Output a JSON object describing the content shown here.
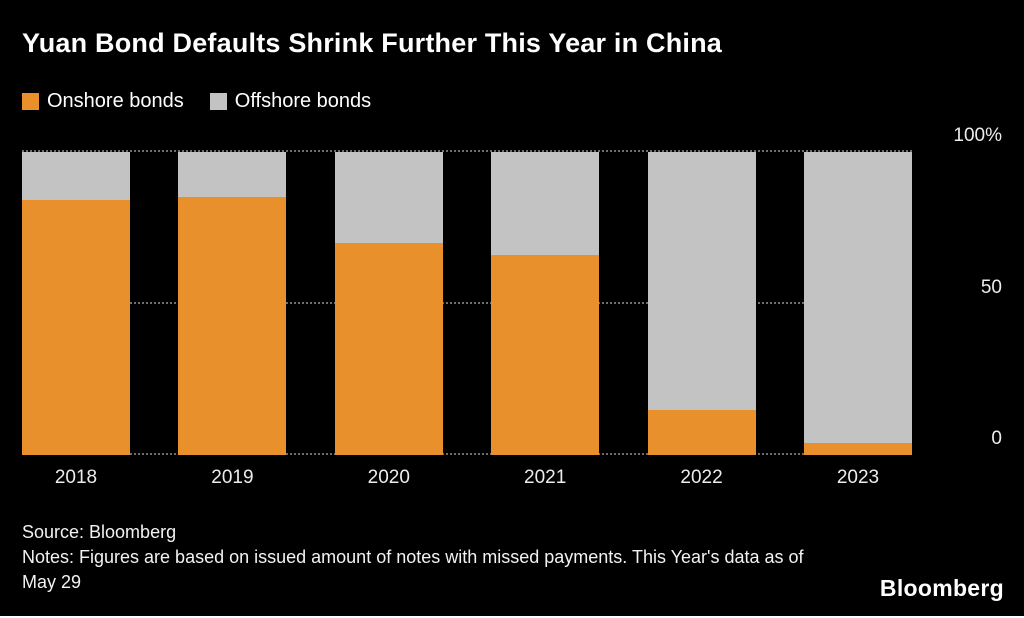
{
  "title": "Yuan Bond Defaults Shrink Further This Year in China",
  "legend": [
    {
      "label": "Onshore bonds",
      "color": "#E8912C"
    },
    {
      "label": "Offshore bonds",
      "color": "#C3C3C3"
    }
  ],
  "colors": {
    "background": "#000000",
    "onshore": "#E8912C",
    "offshore": "#C3C3C3",
    "gridline": "#6E6E6E",
    "text": "#FFFFFF"
  },
  "chart_data": {
    "type": "bar",
    "stacked": true,
    "normalized": "percent",
    "title": "Yuan Bond Defaults Shrink Further This Year in China",
    "categories": [
      "2018",
      "2019",
      "2020",
      "2021",
      "2022",
      "2023"
    ],
    "series": [
      {
        "name": "Onshore bonds",
        "color": "#E8912C",
        "values": [
          84,
          85,
          70,
          66,
          15,
          4
        ]
      },
      {
        "name": "Offshore bonds",
        "color": "#C3C3C3",
        "values": [
          16,
          15,
          30,
          34,
          85,
          96
        ]
      }
    ],
    "xlabel": "",
    "ylabel": "",
    "ylim": [
      0,
      100
    ],
    "yticks": [
      {
        "value": 100,
        "label": "100%"
      },
      {
        "value": 50,
        "label": "50"
      },
      {
        "value": 0,
        "label": "0"
      }
    ],
    "grid": "dotted horizontal",
    "legend_position": "top-left"
  },
  "footer": {
    "source": "Source: Bloomberg",
    "notes": "Notes: Figures are based on issued amount of notes with missed payments. This Year's data as of May 29",
    "brand": "Bloomberg"
  }
}
